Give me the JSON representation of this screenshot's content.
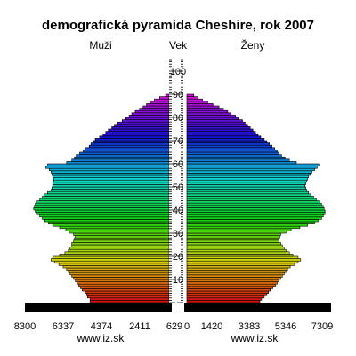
{
  "chart_data": {
    "type": "bar",
    "title": "demografická pyramída Cheshire, rok 2007",
    "left_label": "Muži",
    "center_label": "Vek",
    "right_label": "Ženy",
    "footer_left": "www.iz.sk",
    "footer_right": "www.iz.sk",
    "age_ticks": [
      "10",
      "20",
      "30",
      "40",
      "50",
      "60",
      "70",
      "80",
      "90",
      "100"
    ],
    "x_ticks_men": [
      "8300",
      "6337",
      "4374",
      "2411",
      "629"
    ],
    "x_ticks_women": [
      "0",
      "1420",
      "3383",
      "5346",
      "7309"
    ],
    "xmax": 8300,
    "series": [
      {
        "name": "Muži",
        "values": [
          4550,
          4550,
          4700,
          4750,
          4850,
          5000,
          5100,
          5200,
          5300,
          5400,
          5500,
          5600,
          5700,
          5800,
          5900,
          6100,
          6350,
          6600,
          6800,
          6700,
          6300,
          6000,
          5800,
          5700,
          5600,
          5600,
          5500,
          5450,
          5400,
          5500,
          5700,
          5950,
          6300,
          6700,
          6950,
          7150,
          7300,
          7450,
          7600,
          7700,
          7800,
          7750,
          7700,
          7600,
          7450,
          7300,
          7200,
          7000,
          6800,
          6750,
          6700,
          6700,
          6650,
          6650,
          6700,
          6750,
          6800,
          6900,
          7100,
          7000,
          5900,
          5600,
          5450,
          5350,
          5150,
          4950,
          4850,
          4600,
          4500,
          4350,
          4250,
          4000,
          3800,
          3650,
          3500,
          3300,
          3150,
          2950,
          2700,
          2500,
          2300,
          2150,
          1950,
          1700,
          1500,
          1300,
          1050,
          850,
          550,
          200
        ]
      },
      {
        "name": "Ženy",
        "values": [
          4200,
          4300,
          4450,
          4600,
          4700,
          4800,
          4950,
          5100,
          5200,
          5300,
          5400,
          5500,
          5600,
          5700,
          5800,
          5950,
          6200,
          6400,
          6550,
          6400,
          6100,
          5900,
          5700,
          5600,
          5500,
          5400,
          5300,
          5300,
          5350,
          5400,
          5700,
          6000,
          6500,
          6950,
          7350,
          7550,
          7750,
          7850,
          7950,
          7950,
          7900,
          7850,
          7750,
          7650,
          7450,
          7300,
          7150,
          7000,
          6900,
          6850,
          6800,
          6850,
          6900,
          6950,
          7000,
          7100,
          7200,
          7350,
          7500,
          7600,
          6300,
          5900,
          5650,
          5450,
          5300,
          5200,
          5050,
          4900,
          4750,
          4600,
          4450,
          4250,
          4100,
          3950,
          3800,
          3650,
          3500,
          3350,
          3200,
          2950,
          2800,
          2550,
          2350,
          2100,
          1850,
          1500,
          1200,
          900,
          650,
          400
        ]
      }
    ]
  }
}
